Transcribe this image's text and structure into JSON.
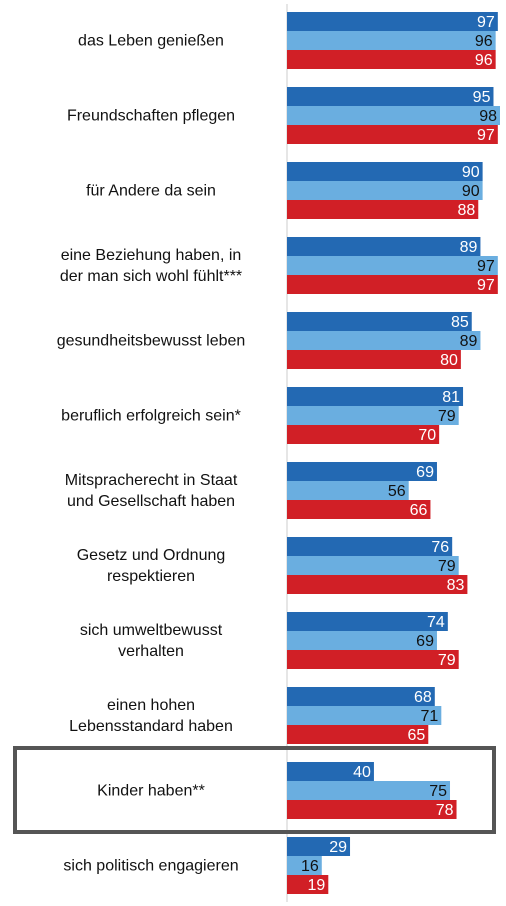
{
  "chart_data": {
    "type": "bar",
    "orientation": "horizontal",
    "categories": [
      "das Leben genießen",
      "Freundschaften pflegen",
      "für Andere da sein",
      "eine Beziehung haben, in\nder man sich wohl fühlt***",
      "gesundheitsbewusst leben",
      "beruflich erfolgreich sein*",
      "Mitspracherecht in Staat\nund Gesellschaft haben",
      "Gesetz und Ordnung\nrespektieren",
      "sich umweltbewusst\nverhalten",
      "einen hohen\nLebensstandard haben",
      "Kinder haben**",
      "sich politisch engagieren"
    ],
    "series": [
      {
        "color": "#2369b3",
        "values": [
          97,
          95,
          90,
          89,
          85,
          81,
          69,
          76,
          74,
          68,
          40,
          29
        ]
      },
      {
        "color": "#6aaee0",
        "values": [
          96,
          98,
          90,
          97,
          89,
          79,
          56,
          79,
          69,
          71,
          75,
          16
        ]
      },
      {
        "color": "#d11f26",
        "values": [
          96,
          97,
          88,
          97,
          80,
          70,
          66,
          83,
          79,
          65,
          78,
          19
        ]
      }
    ]
  }
}
